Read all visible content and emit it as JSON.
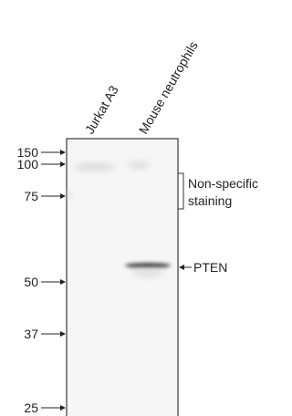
{
  "lanes": [
    "Jurkat A3",
    "Mouse neutrophils"
  ],
  "markers": [
    150,
    100,
    75,
    50,
    37,
    25
  ],
  "annotations": {
    "nonspecific": [
      "Non-specific",
      "staining"
    ],
    "pten": "PTEN"
  }
}
